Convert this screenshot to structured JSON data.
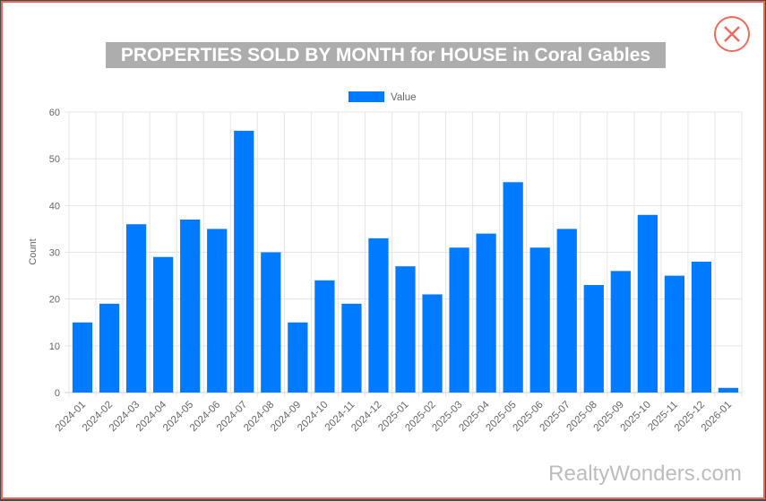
{
  "modal": {
    "title": "PROPERTIES SOLD BY MONTH for HOUSE in Coral Gables",
    "close_icon": "close-icon"
  },
  "watermark": "RealtyWonders.com",
  "colors": {
    "bar": "#007bff",
    "border": "#e8695c",
    "grid": "#e5e5e5"
  },
  "chart_data": {
    "type": "bar",
    "title": "PROPERTIES SOLD BY MONTH for HOUSE in Coral Gables",
    "xlabel": "",
    "ylabel": "Count",
    "ylim": [
      0,
      60
    ],
    "yticks": [
      0,
      10,
      20,
      30,
      40,
      50,
      60
    ],
    "grid": true,
    "legend": {
      "position": "top-center",
      "entries": [
        "Value"
      ]
    },
    "categories": [
      "2024-01",
      "2024-02",
      "2024-03",
      "2024-04",
      "2024-05",
      "2024-06",
      "2024-07",
      "2024-08",
      "2024-09",
      "2024-10",
      "2024-11",
      "2024-12",
      "2025-01",
      "2025-02",
      "2025-03",
      "2025-04",
      "2025-05",
      "2025-06",
      "2025-07",
      "2025-08",
      "2025-09",
      "2025-10",
      "2025-11",
      "2025-12",
      "2026-01"
    ],
    "series": [
      {
        "name": "Value",
        "values": [
          15,
          19,
          36,
          29,
          37,
          35,
          56,
          30,
          15,
          24,
          19,
          33,
          27,
          21,
          31,
          34,
          45,
          31,
          35,
          23,
          26,
          38,
          25,
          28,
          1
        ]
      }
    ]
  }
}
